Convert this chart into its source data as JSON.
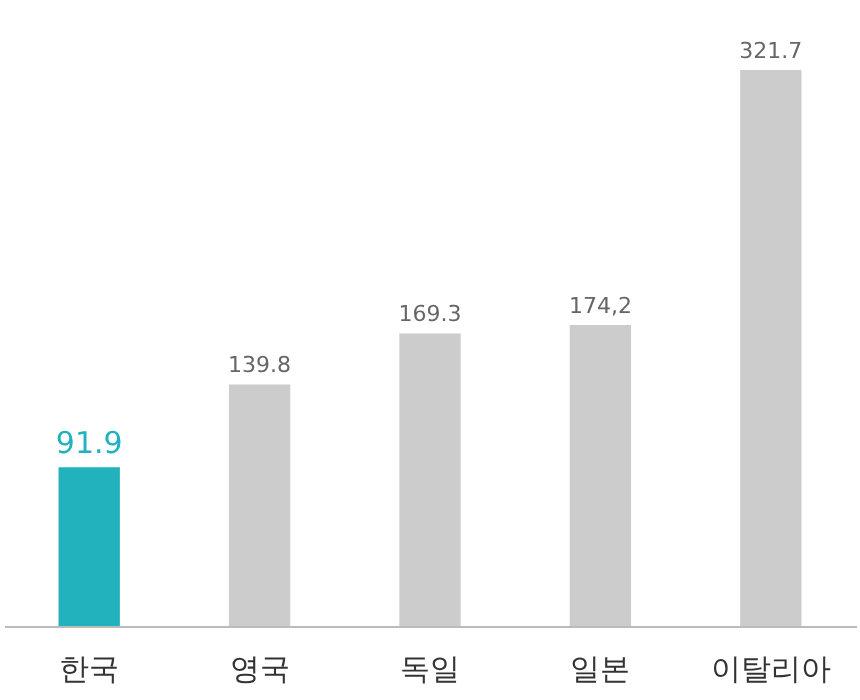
{
  "chart_data": {
    "type": "bar",
    "categories": [
      "한국",
      "영국",
      "독일",
      "일본",
      "이탈리아"
    ],
    "values": [
      91.9,
      139.8,
      169.3,
      174.2,
      321.7
    ],
    "value_labels": [
      "91.9",
      "139.8",
      "169.3",
      "174,2",
      "321.7"
    ],
    "colors": [
      "#22b2be",
      "#cccccc",
      "#cccccc",
      "#cccccc",
      "#cccccc"
    ],
    "grid": false
  }
}
